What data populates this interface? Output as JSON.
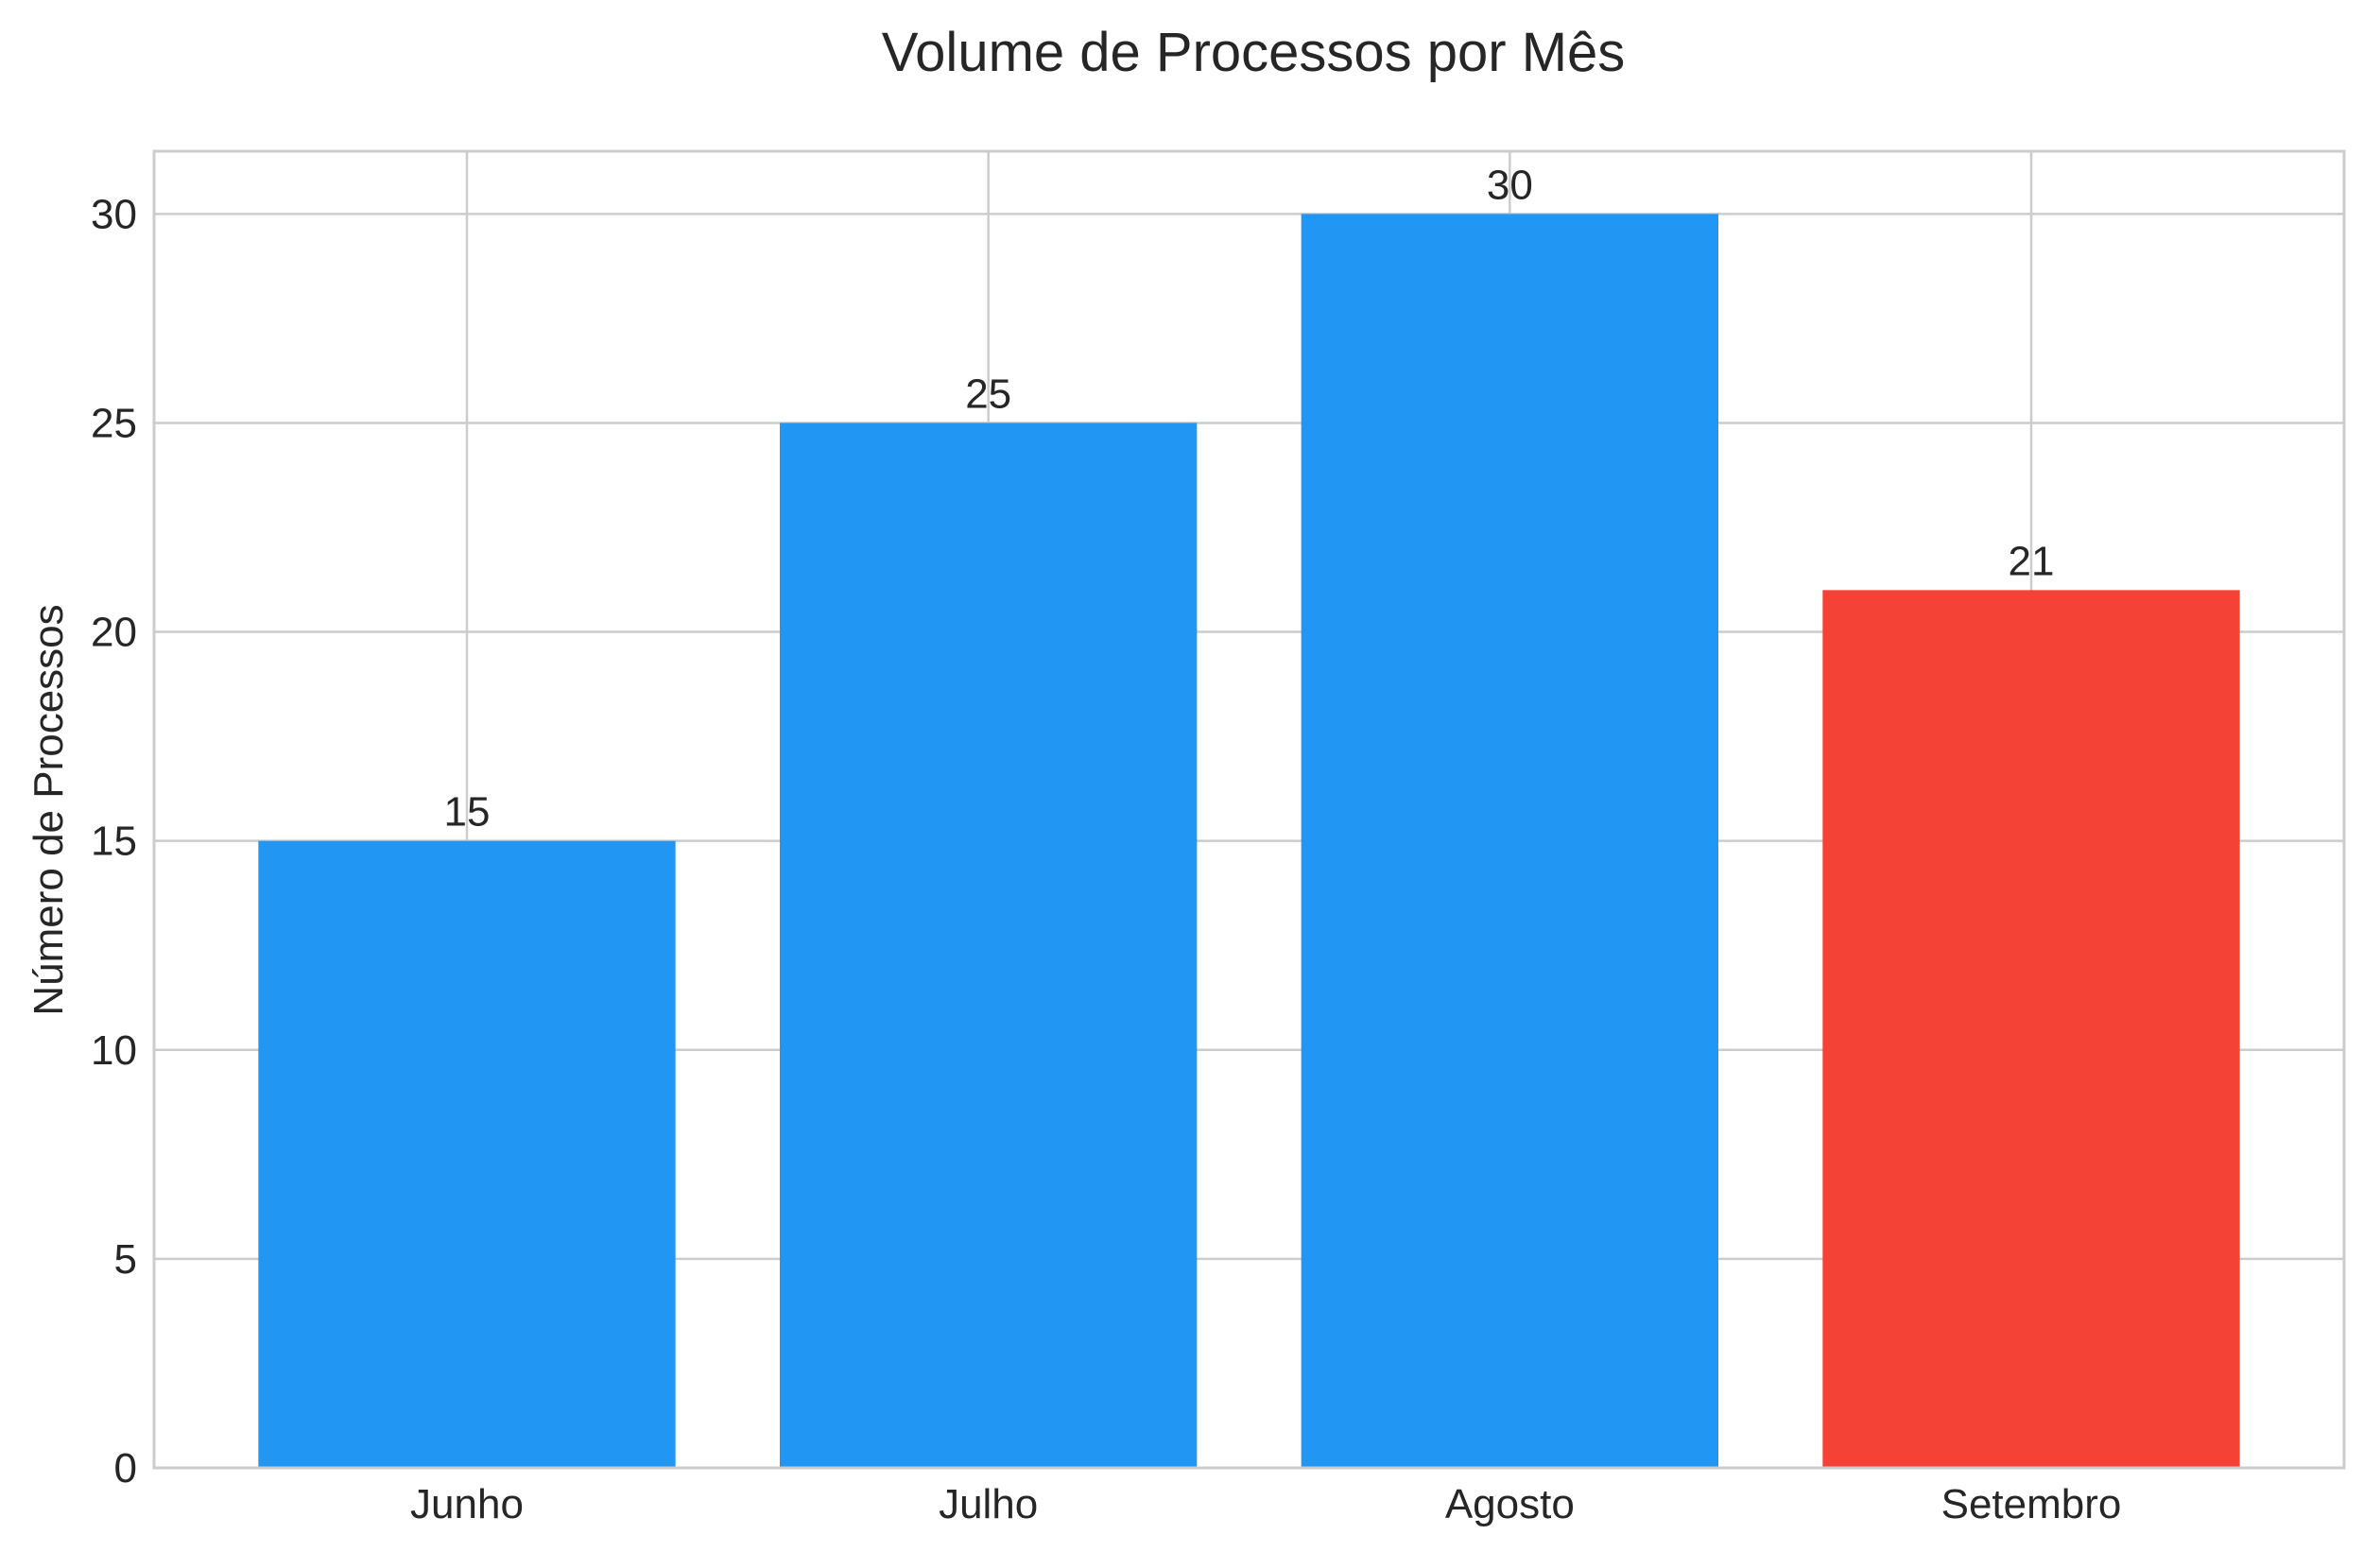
{
  "chart_data": {
    "type": "bar",
    "title": "Volume de Processos por Mês",
    "xlabel": "",
    "ylabel": "Número de Processos",
    "categories": [
      "Junho",
      "Julho",
      "Agosto",
      "Setembro"
    ],
    "values": [
      15,
      25,
      30,
      21
    ],
    "data_labels": [
      "15",
      "25",
      "30",
      "21"
    ],
    "bar_colors": [
      "#2196F3",
      "#2196F3",
      "#2196F3",
      "#F44336"
    ],
    "ylim": [
      0,
      31.5
    ],
    "yticks": [
      0,
      5,
      10,
      15,
      20,
      25,
      30
    ],
    "ytick_labels": [
      "0",
      "5",
      "10",
      "15",
      "20",
      "25",
      "30"
    ],
    "grid": true,
    "legend": "none"
  },
  "colors": {
    "grid": "#cccccc",
    "axes_border": "#cccccc",
    "text": "#262626",
    "background": "#ffffff"
  }
}
